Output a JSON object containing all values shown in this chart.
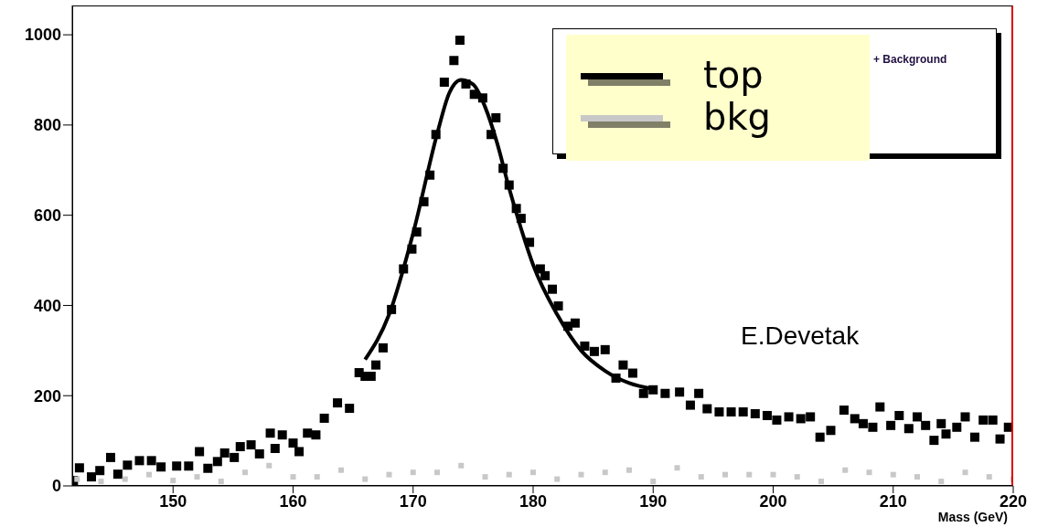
{
  "chart_data": {
    "type": "scatter",
    "xlabel": "Mass (GeV)",
    "xlim": [
      141.6,
      220
    ],
    "ylim": [
      0,
      1065
    ],
    "xticks": [
      150,
      160,
      170,
      180,
      190,
      200,
      210,
      220
    ],
    "yticks": [
      0,
      200,
      400,
      600,
      800,
      1000
    ],
    "grid": false,
    "legend": "top right",
    "marker": "square",
    "annotations": [
      "+ Background",
      "E.Devetak"
    ],
    "series": [
      {
        "name": "top",
        "color": "#000000",
        "x": [
          141.7,
          142.2,
          143.2,
          143.9,
          144.8,
          145.4,
          146.2,
          147.2,
          148.2,
          149.0,
          150.3,
          151.3,
          152.2,
          152.9,
          153.7,
          154.3,
          155.1,
          155.6,
          156.5,
          157.2,
          158.1,
          158.5,
          159.1,
          160.0,
          160.5,
          161.2,
          161.9,
          162.6,
          163.7,
          164.7,
          165.5,
          166.0,
          166.5,
          166.9,
          167.5,
          168.2,
          169.2,
          169.9,
          170.3,
          170.9,
          171.4,
          171.9,
          172.6,
          173.4,
          173.9,
          174.4,
          175.1,
          175.8,
          176.5,
          176.9,
          177.5,
          178.0,
          178.6,
          179.0,
          179.7,
          180.6,
          181.0,
          181.6,
          182.1,
          182.9,
          183.5,
          184.3,
          185.1,
          186.0,
          186.9,
          187.5,
          188.3,
          189.2,
          190.0,
          191.0,
          192.2,
          193.1,
          193.8,
          194.5,
          195.5,
          196.5,
          197.5,
          198.5,
          199.5,
          200.3,
          201.3,
          202.3,
          203.1,
          203.9,
          204.8,
          205.9,
          206.8,
          207.5,
          208.3,
          208.9,
          209.8,
          210.5,
          211.3,
          212.0,
          212.7,
          213.4,
          214.0,
          214.4,
          215.3,
          216.0,
          216.8,
          217.5,
          218.3,
          218.9,
          219.6
        ],
        "values": [
          12,
          40,
          20,
          34,
          63,
          26,
          46,
          56,
          56,
          42,
          44,
          44,
          76,
          39,
          54,
          73,
          63,
          87,
          91,
          71,
          117,
          83,
          113,
          95,
          76,
          117,
          113,
          150,
          184,
          172,
          251,
          243,
          243,
          268,
          306,
          391,
          481,
          525,
          563,
          630,
          689,
          779,
          895,
          943,
          988,
          891,
          868,
          860,
          779,
          816,
          704,
          667,
          615,
          593,
          540,
          481,
          466,
          436,
          399,
          354,
          361,
          310,
          298,
          302,
          239,
          268,
          250,
          205,
          213,
          205,
          208,
          179,
          205,
          171,
          164,
          164,
          164,
          160,
          156,
          146,
          153,
          149,
          153,
          108,
          123,
          168,
          149,
          138,
          130,
          175,
          134,
          156,
          127,
          153,
          134,
          101,
          138,
          115,
          130,
          153,
          108,
          146,
          146,
          104,
          130
        ]
      },
      {
        "name": "bkg",
        "color": "#c8c8c8",
        "x": [
          142,
          144,
          146,
          148,
          150,
          152,
          154,
          156,
          158,
          160,
          162,
          164,
          166,
          168,
          170,
          172,
          174,
          176,
          178,
          180,
          182,
          184,
          186,
          188,
          190,
          192,
          194,
          196,
          198,
          200,
          202,
          204,
          206,
          208,
          210,
          212,
          214,
          216,
          218,
          220
        ],
        "values": [
          15,
          10,
          15,
          25,
          12,
          20,
          10,
          30,
          45,
          20,
          20,
          35,
          15,
          25,
          30,
          30,
          45,
          20,
          25,
          30,
          15,
          25,
          30,
          35,
          10,
          40,
          20,
          25,
          25,
          25,
          20,
          10,
          35,
          30,
          25,
          20,
          10,
          30,
          20,
          15
        ]
      },
      {
        "type": "line",
        "marker": "none",
        "color": "#000000",
        "x": [
          166,
          168,
          170,
          172,
          173,
          174,
          175,
          176,
          177,
          178,
          179,
          180,
          182,
          184,
          186,
          188,
          190
        ],
        "values": [
          280,
          380,
          560,
          780,
          870,
          900,
          890,
          840,
          760,
          660,
          570,
          490,
          380,
          300,
          255,
          228,
          215
        ]
      }
    ]
  }
}
